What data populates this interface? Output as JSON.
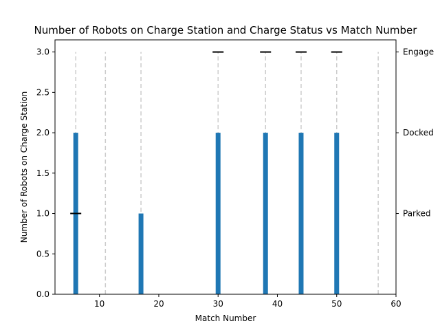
{
  "chart_data": {
    "type": "bar",
    "title": "Number of Robots on Charge Station and Charge Status vs Match Number",
    "xlabel": "Match Number",
    "ylabel": "Number of Robots on Charge Station",
    "xlim": [
      2.5,
      60
    ],
    "ylim": [
      0,
      3.15
    ],
    "x_ticks": [
      10,
      20,
      30,
      40,
      50,
      60
    ],
    "y_ticks": [
      0.0,
      0.5,
      1.0,
      1.5,
      2.0,
      2.5,
      3.0
    ],
    "y_tick_labels": [
      "0.0",
      "0.5",
      "1.0",
      "1.5",
      "2.0",
      "2.5",
      "3.0"
    ],
    "series": [
      {
        "type": "bar",
        "color": "#1f77b4",
        "x": [
          6,
          17,
          30,
          38,
          44,
          50
        ],
        "values": [
          2,
          1,
          2,
          2,
          2,
          2
        ]
      }
    ],
    "vlines": {
      "color": "#cccccc",
      "style": "dashed",
      "x": [
        6,
        11,
        17,
        30,
        38,
        44,
        50,
        57
      ],
      "ymax": 3.0
    },
    "status_markers": {
      "color": "#000000",
      "marker": "hline",
      "x": [
        6,
        30,
        38,
        44,
        50
      ],
      "y": [
        1,
        3,
        3,
        3,
        3
      ]
    },
    "right_axis": {
      "ylim": [
        0,
        3.15
      ],
      "ticks": [
        1,
        2,
        3
      ],
      "tick_labels": [
        "Parked",
        "Docked",
        "Engage"
      ]
    },
    "grid": false,
    "legend": "none"
  }
}
